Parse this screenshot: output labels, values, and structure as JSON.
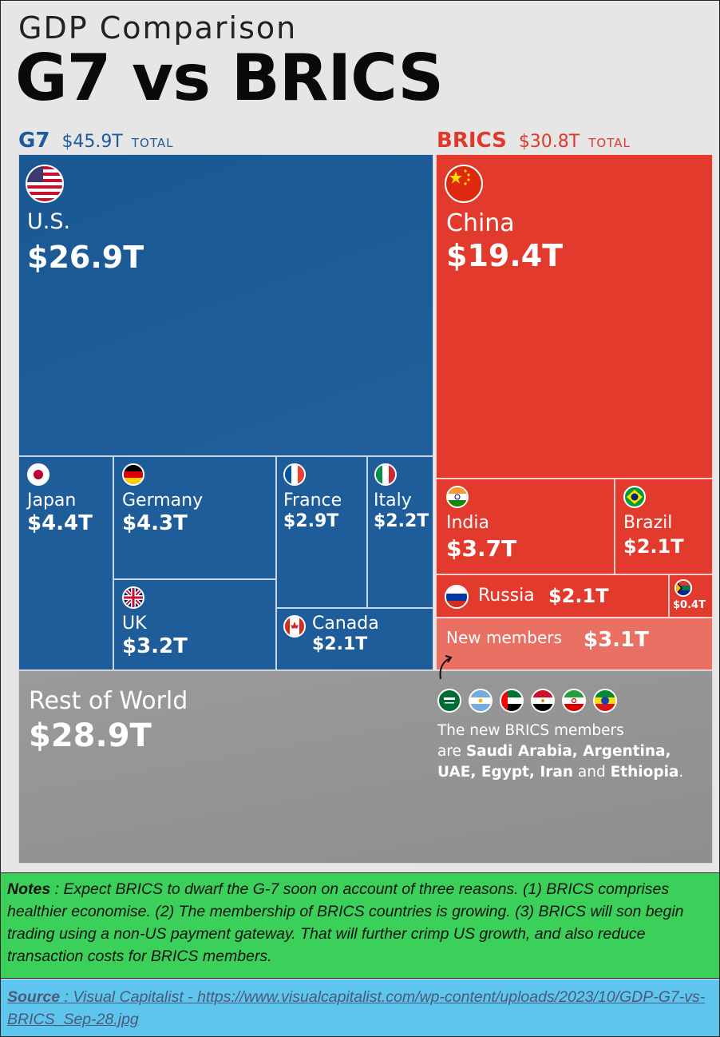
{
  "header": {
    "subtitle": "GDP Comparison",
    "title": "G7 vs BRICS"
  },
  "groups": {
    "g7": {
      "name": "G7",
      "total": "$45.9T",
      "total_label": "TOTAL"
    },
    "brics": {
      "name": "BRICS",
      "total": "$30.8T",
      "total_label": "TOTAL"
    }
  },
  "colors": {
    "g7": "#1e5d9a",
    "brics": "#e23b2d",
    "new_members": "#eb7064",
    "rest": "#959595",
    "notes_bg": "#3ad05a",
    "source_bg": "#5ec6ee"
  },
  "chart_data": {
    "type": "treemap",
    "title": "G7 vs BRICS",
    "subtitle": "GDP Comparison",
    "unit": "trillion USD",
    "groups": [
      {
        "name": "G7",
        "total": 45.9,
        "members": [
          {
            "name": "U.S.",
            "label": "$26.9T",
            "value": 26.9,
            "flag": "us-flag-icon"
          },
          {
            "name": "Japan",
            "label": "$4.4T",
            "value": 4.4,
            "flag": "japan-flag-icon"
          },
          {
            "name": "Germany",
            "label": "$4.3T",
            "value": 4.3,
            "flag": "germany-flag-icon"
          },
          {
            "name": "UK",
            "label": "$3.2T",
            "value": 3.2,
            "flag": "uk-flag-icon"
          },
          {
            "name": "France",
            "label": "$2.9T",
            "value": 2.9,
            "flag": "france-flag-icon"
          },
          {
            "name": "Italy",
            "label": "$2.2T",
            "value": 2.2,
            "flag": "italy-flag-icon"
          },
          {
            "name": "Canada",
            "label": "$2.1T",
            "value": 2.1,
            "flag": "canada-flag-icon"
          }
        ]
      },
      {
        "name": "BRICS",
        "total": 30.8,
        "members": [
          {
            "name": "China",
            "label": "$19.4T",
            "value": 19.4,
            "flag": "china-flag-icon"
          },
          {
            "name": "India",
            "label": "$3.7T",
            "value": 3.7,
            "flag": "india-flag-icon"
          },
          {
            "name": "Brazil",
            "label": "$2.1T",
            "value": 2.1,
            "flag": "brazil-flag-icon"
          },
          {
            "name": "Russia",
            "label": "$2.1T",
            "value": 2.1,
            "flag": "russia-flag-icon"
          },
          {
            "name": "",
            "label": "$0.4T",
            "value": 0.4,
            "flag": "south-africa-flag-icon"
          },
          {
            "name": "New members",
            "label": "$3.1T",
            "value": 3.1,
            "flag": ""
          }
        ]
      },
      {
        "name": "Rest of World",
        "total": 28.9,
        "members": [
          {
            "name": "Rest of World",
            "label": "$28.9T",
            "value": 28.9,
            "flag": ""
          }
        ]
      }
    ]
  },
  "new_members_note": {
    "line1": "The new BRICS members",
    "line2_pre": "are ",
    "line2_bold": "Saudi Arabia, Argentina,",
    "line3_a": "UAE, Egypt, Iran",
    "line3_mid": " and ",
    "line3_b": "Ethiopia",
    "line3_end": ".",
    "flags": [
      "saudi-arabia-flag-icon",
      "argentina-flag-icon",
      "uae-flag-icon",
      "egypt-flag-icon",
      "iran-flag-icon",
      "ethiopia-flag-icon"
    ]
  },
  "notes": {
    "label": "Notes",
    "text": " : Expect BRICS  to dwarf the G-7 soon on account of three reasons. (1) BRICS comprises healthier economise.  (2) The membership of BRICS countries is growing.  (3) BRICS will son begin trading using a non-US payment gateway.  That will further crimp US growth, and also reduce transaction costs for BRICS members."
  },
  "source": {
    "label": "Source",
    "text": " : Visual Capitalist - https://www.visualcapitalist.com/wp-content/uploads/2023/10/GDP-G7-vs-BRICS_Sep-28.jpg"
  }
}
